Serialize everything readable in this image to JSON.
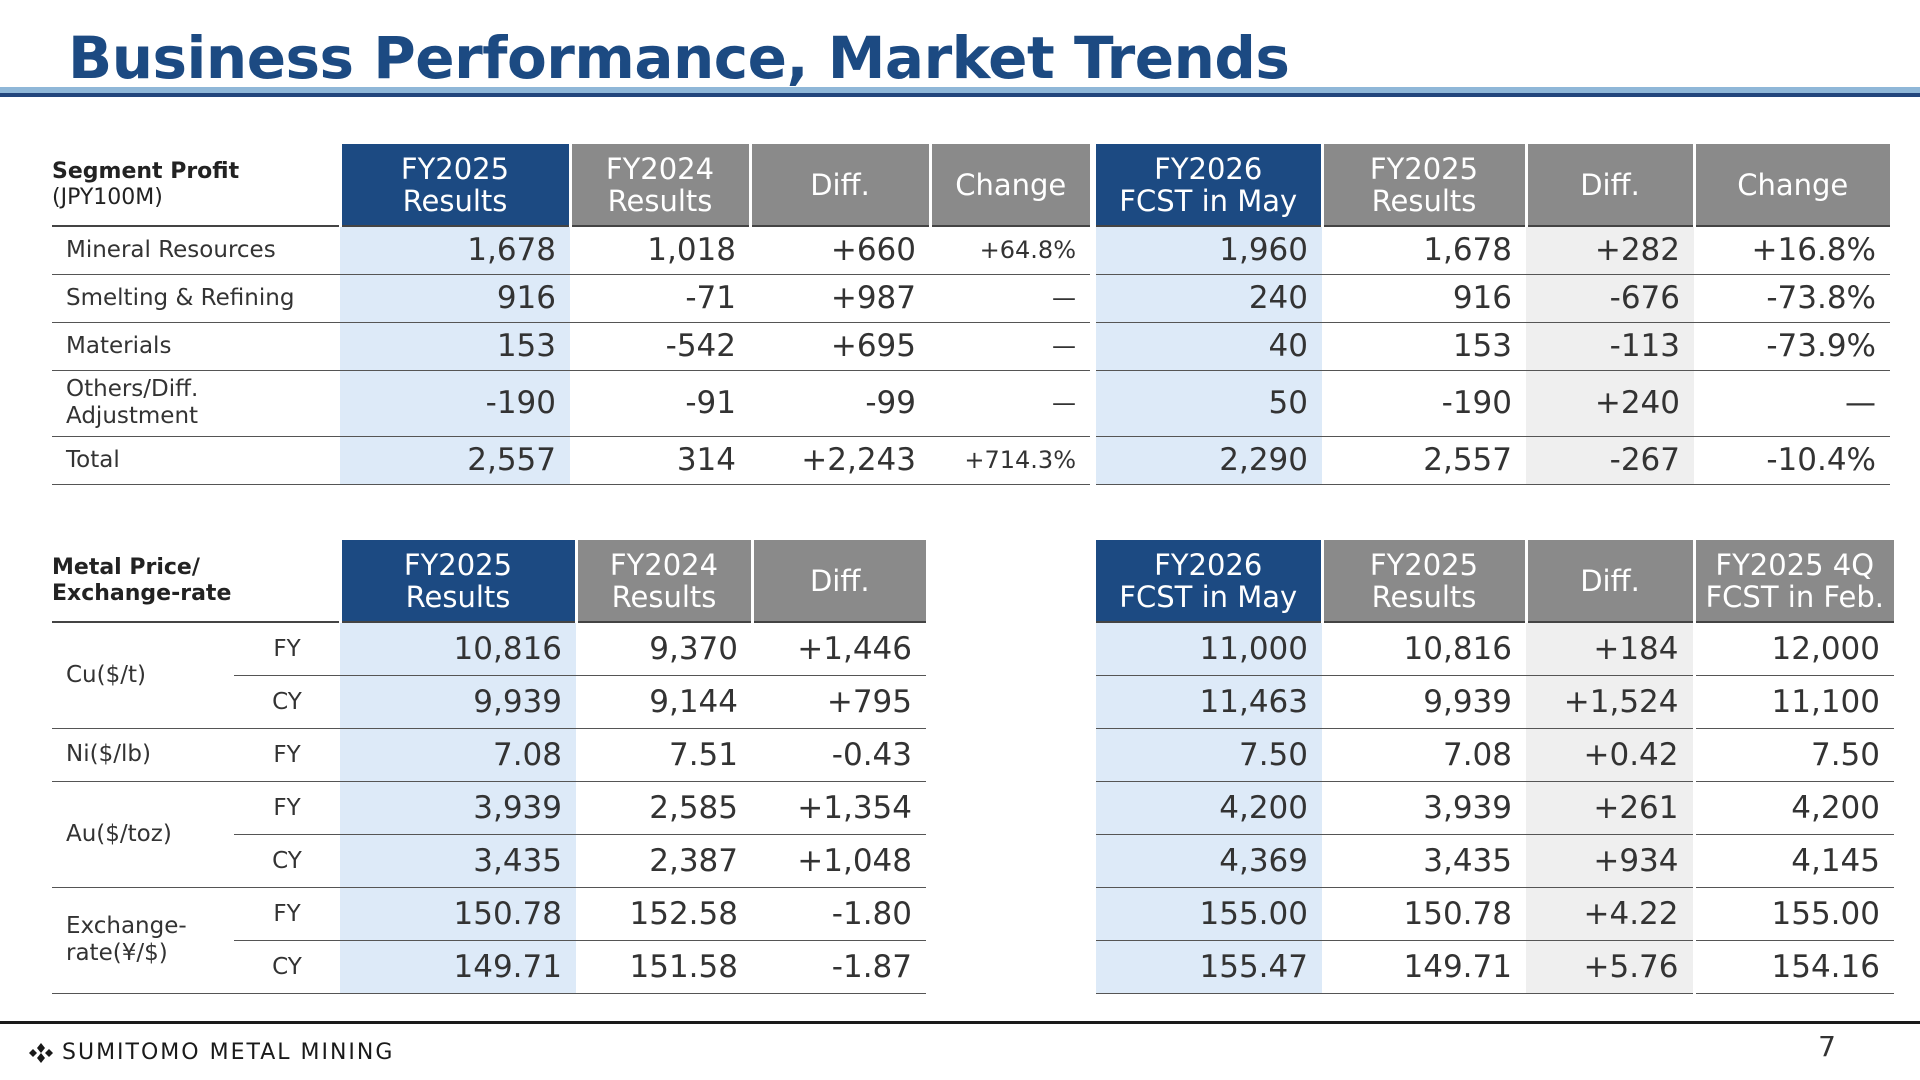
{
  "page": {
    "title": "Business Performance, Market Trends",
    "page_number": "7",
    "logo_text": "SUMITOMO METAL MINING"
  },
  "segment": {
    "head_title": "Segment Profit",
    "head_unit": "(JPY100M)",
    "left_cols": [
      "FY2025\nResults",
      "FY2024\nResults",
      "Diff.",
      "Change"
    ],
    "right_cols": [
      "FY2026\nFCST in May",
      "FY2025\nResults",
      "Diff.",
      "Change"
    ],
    "rows": [
      {
        "label": "Mineral Resources",
        "l": [
          "1,678",
          "1,018",
          "+660",
          "+64.8%"
        ],
        "r": [
          "1,960",
          "1,678",
          "+282",
          "+16.8%"
        ]
      },
      {
        "label": "Smelting & Refining",
        "l": [
          "916",
          "-71",
          "+987",
          "—"
        ],
        "r": [
          "240",
          "916",
          "-676",
          "-73.8%"
        ]
      },
      {
        "label": "Materials",
        "l": [
          "153",
          "-542",
          "+695",
          "—"
        ],
        "r": [
          "40",
          "153",
          "-113",
          "-73.9%"
        ]
      },
      {
        "label": "Others/Diff.\nAdjustment",
        "l": [
          "-190",
          "-91",
          "-99",
          "—"
        ],
        "r": [
          "50",
          "-190",
          "+240",
          "—"
        ]
      },
      {
        "label": "Total",
        "l": [
          "2,557",
          "314",
          "+2,243",
          "+714.3%"
        ],
        "r": [
          "2,290",
          "2,557",
          "-267",
          "-10.4%"
        ]
      }
    ]
  },
  "metal": {
    "head_title": "Metal Price/",
    "head_title2": "Exchange-rate",
    "left_cols": [
      "FY2025\nResults",
      "FY2024\nResults",
      "Diff."
    ],
    "right_cols": [
      "FY2026\nFCST in May",
      "FY2025\nResults",
      "Diff.",
      "FY2025 4Q\nFCST in Feb."
    ],
    "groups": [
      "Cu($/t)",
      "Ni($/lb)",
      "Au($/toz)",
      "Exchange-\nrate(¥/$)"
    ],
    "rows": [
      {
        "sub": "FY",
        "l": [
          "10,816",
          "9,370",
          "+1,446"
        ],
        "r": [
          "11,000",
          "10,816",
          "+184",
          "12,000"
        ]
      },
      {
        "sub": "CY",
        "l": [
          "9,939",
          "9,144",
          "+795"
        ],
        "r": [
          "11,463",
          "9,939",
          "+1,524",
          "11,100"
        ]
      },
      {
        "sub": "FY",
        "l": [
          "7.08",
          "7.51",
          "-0.43"
        ],
        "r": [
          "7.50",
          "7.08",
          "+0.42",
          "7.50"
        ]
      },
      {
        "sub": "FY",
        "l": [
          "3,939",
          "2,585",
          "+1,354"
        ],
        "r": [
          "4,200",
          "3,939",
          "+261",
          "4,200"
        ]
      },
      {
        "sub": "CY",
        "l": [
          "3,435",
          "2,387",
          "+1,048"
        ],
        "r": [
          "4,369",
          "3,435",
          "+934",
          "4,145"
        ]
      },
      {
        "sub": "FY",
        "l": [
          "150.78",
          "152.58",
          "-1.80"
        ],
        "r": [
          "155.00",
          "150.78",
          "+4.22",
          "155.00"
        ]
      },
      {
        "sub": "CY",
        "l": [
          "149.71",
          "151.58",
          "-1.87"
        ],
        "r": [
          "155.47",
          "149.71",
          "+5.76",
          "154.16"
        ]
      }
    ]
  }
}
